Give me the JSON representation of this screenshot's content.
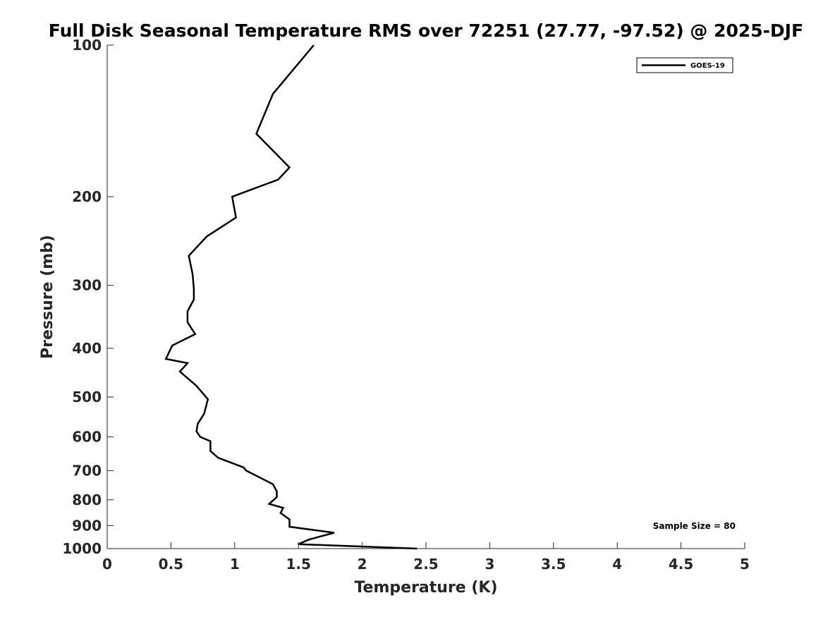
{
  "chart_data": {
    "type": "line",
    "title": "Full Disk Seasonal Temperature RMS over 72251 (27.77, -97.52) @ 2025-DJF",
    "xlabel": "Temperature (K)",
    "ylabel": "Pressure (mb)",
    "xlim": [
      0,
      5
    ],
    "ylim": [
      1000,
      100
    ],
    "yscale": "log",
    "x_ticks": [
      0,
      0.5,
      1,
      1.5,
      2,
      2.5,
      3,
      3.5,
      4,
      4.5,
      5
    ],
    "x_tick_labels": [
      "0",
      "0.5",
      "1",
      "1.5",
      "2",
      "2.5",
      "3",
      "3.5",
      "4",
      "4.5",
      "5"
    ],
    "y_ticks": [
      100,
      200,
      300,
      400,
      500,
      600,
      700,
      800,
      900,
      1000
    ],
    "y_tick_labels": [
      "100",
      "200",
      "300",
      "400",
      "500",
      "600",
      "700",
      "800",
      "900",
      "1000"
    ],
    "grid": false,
    "legend_position": "top-right",
    "line_color": "#000000",
    "series": [
      {
        "name": "GOES-19",
        "color": "#000000",
        "x": [
          1.62,
          1.3,
          1.17,
          1.43,
          1.34,
          0.98,
          1.01,
          0.78,
          0.64,
          0.67,
          0.68,
          0.68,
          0.63,
          0.63,
          0.69,
          0.51,
          0.46,
          0.63,
          0.57,
          0.7,
          0.79,
          0.76,
          0.71,
          0.7,
          0.73,
          0.81,
          0.81,
          0.87,
          1.07,
          1.09,
          1.3,
          1.33,
          1.33,
          1.27,
          1.38,
          1.36,
          1.43,
          1.43,
          1.78,
          1.58,
          1.5,
          2.43
        ],
        "y": [
          100,
          125,
          150,
          175,
          185,
          200,
          220,
          240,
          262,
          285,
          305,
          320,
          338,
          355,
          375,
          395,
          420,
          428,
          445,
          475,
          505,
          540,
          565,
          585,
          600,
          612,
          640,
          660,
          690,
          700,
          745,
          770,
          790,
          815,
          830,
          850,
          875,
          905,
          930,
          960,
          980,
          1000
        ]
      }
    ],
    "annotations": [
      {
        "text": "Sample Size = 80",
        "position": "bottom-right"
      }
    ]
  }
}
